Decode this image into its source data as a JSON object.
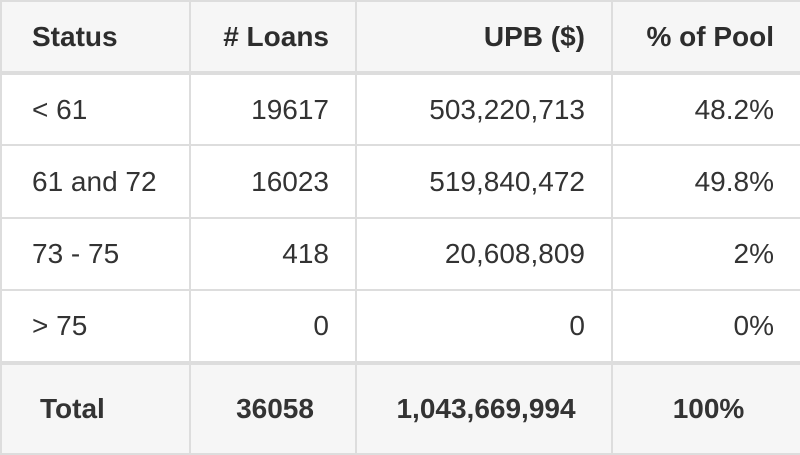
{
  "table": {
    "headers": {
      "status": "Status",
      "loans": "# Loans",
      "upb": "UPB ($)",
      "pct": "% of Pool"
    },
    "rows": [
      {
        "status": "< 61",
        "loans": "19617",
        "upb": "503,220,713",
        "pct": "48.2%"
      },
      {
        "status": "61 and 72",
        "loans": "16023",
        "upb": "519,840,472",
        "pct": "49.8%"
      },
      {
        "status": "73 - 75",
        "loans": "418",
        "upb": "20,608,809",
        "pct": "2%"
      },
      {
        "status": "> 75",
        "loans": "0",
        "upb": "0",
        "pct": "0%"
      }
    ],
    "total": {
      "status": "Total",
      "loans": "36058",
      "upb": "1,043,669,994",
      "pct": "100%"
    }
  },
  "colors": {
    "header_bg": "#f6f6f6",
    "border": "#dddddd",
    "text": "#333333"
  }
}
